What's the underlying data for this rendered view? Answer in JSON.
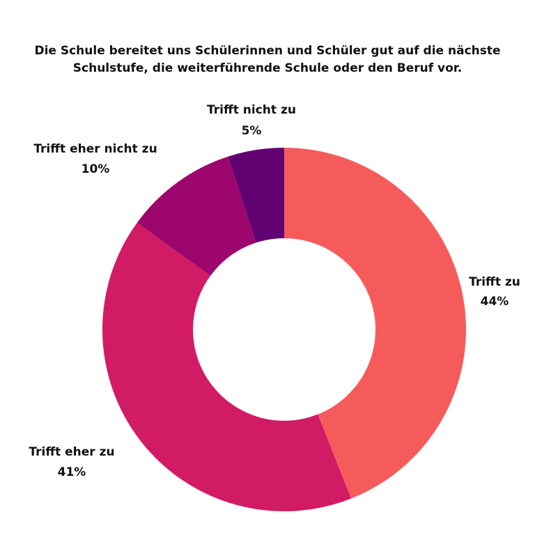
{
  "chart_data": {
    "type": "pie",
    "title_lines": [
      "Die Schule bereitet uns Schülerinnen und Schüler gut auf die nächste",
      "Schulstufe, die weiterführende Schule oder den Beruf vor."
    ],
    "legend": "none",
    "start_angle": "12 o'clock, clockwise",
    "slices": [
      {
        "label": "Trifft zu",
        "value": 44,
        "value_label": "44%",
        "color": "#f65b5b"
      },
      {
        "label": "Trifft eher zu",
        "value": 41,
        "value_label": "41%",
        "color": "#d21b65"
      },
      {
        "label": "Trifft eher nicht zu",
        "value": 10,
        "value_label": "10%",
        "color": "#9c066d"
      },
      {
        "label": "Trifft nicht zu",
        "value": 5,
        "value_label": "5%",
        "color": "#620172"
      }
    ]
  }
}
